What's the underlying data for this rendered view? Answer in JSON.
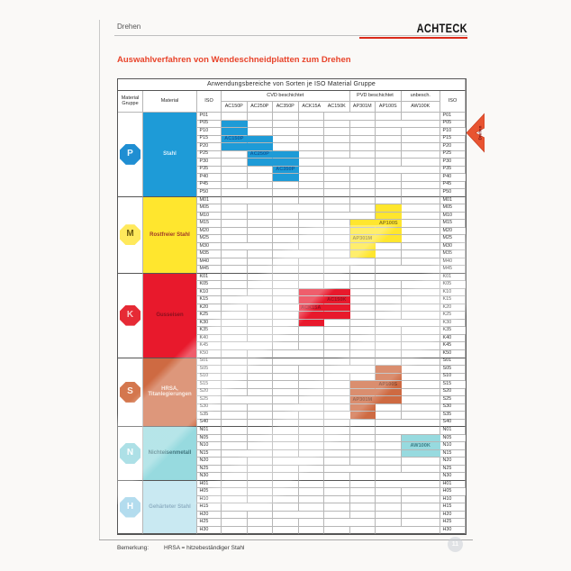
{
  "page": {
    "tab_label": "Drehen",
    "brand": "ACHTECK",
    "heading": "Auswahlverfahren von Wendeschneidplatten zum Drehen",
    "side_tab_label": "Drehen",
    "page_badge": "11",
    "accent_red": "#da2a1a"
  },
  "footer": {
    "label": "Bemerkung:",
    "text": "HRSA = hitzebeständiger Stahl"
  },
  "chart": {
    "title": "Anwendungsbereiche von Sorten je ISO Material Gruppe",
    "headers": {
      "material_group": "Material Gruppe",
      "material": "Material",
      "iso_left": "ISO",
      "iso_right": "ISO",
      "groups": [
        {
          "label": "CVD beschichtet",
          "cols": [
            "AC150P",
            "AC250P",
            "AC350P",
            "ACK15A",
            "AC150K"
          ]
        },
        {
          "label": "PVD beschichtet",
          "cols": [
            "AP301M",
            "AP100S"
          ]
        },
        {
          "label": "unbesch.",
          "cols": [
            "AW100K"
          ]
        }
      ]
    },
    "sections": [
      {
        "group": "P",
        "material": [
          "Stahl"
        ],
        "color": "#1e9bd7",
        "oct_color": "#1f8ed2",
        "letter_color": "#eaf6fd",
        "material_text_color": "#d8eefb",
        "label_color": "#0c5296",
        "iso": [
          "P01",
          "P05",
          "P10",
          "P15",
          "P20",
          "P25",
          "P30",
          "P35",
          "P40",
          "P45",
          "P50"
        ],
        "blocks": [
          {
            "grade": "AC150P",
            "from": "P05",
            "to": "P20",
            "label_at": "P15"
          },
          {
            "grade": "AC250P",
            "from": "P15",
            "to": "P30",
            "label_at": "P25"
          },
          {
            "grade": "AC350P",
            "from": "P25",
            "to": "P40",
            "label_at": "P35"
          }
        ]
      },
      {
        "group": "M",
        "material": [
          "Rostfreier Stahl"
        ],
        "color": "#ffe62e",
        "oct_color": "#ffe95c",
        "letter_color": "#6b5a10",
        "material_text_color": "#a03a28",
        "label_color": "#7c6a1e",
        "iso": [
          "M01",
          "M05",
          "M10",
          "M15",
          "M20",
          "M25",
          "M30",
          "M35",
          "M40",
          "M45"
        ],
        "blocks": [
          {
            "grade": "AP301M",
            "from": "M15",
            "to": "M35",
            "label_at": "M25"
          },
          {
            "grade": "AP100S",
            "from": "M05",
            "to": "M25",
            "label_at": "M15"
          }
        ]
      },
      {
        "group": "K",
        "material": [
          "Gusseisen"
        ],
        "color": "#e8192c",
        "oct_color": "#e62a35",
        "letter_color": "#f6c9c9",
        "material_text_color": "#8a0f1d",
        "label_color": "#8a0f1d",
        "iso": [
          "K01",
          "K05",
          "K10",
          "K15",
          "K20",
          "K25",
          "K30",
          "K35",
          "K40",
          "K45",
          "K50"
        ],
        "blocks": [
          {
            "grade": "ACK15A",
            "from": "K10",
            "to": "K30",
            "label_at": "K20"
          },
          {
            "grade": "AC150K",
            "from": "K10",
            "to": "K25",
            "label_at": "K15"
          }
        ]
      },
      {
        "group": "S",
        "material": [
          "HRSA,",
          "Titanlegierungen"
        ],
        "color": "#ce6a42",
        "oct_color": "#d4774e",
        "letter_color": "#fceee6",
        "material_text_color": "#f7e4d8",
        "label_color": "#73331a",
        "iso": [
          "S01",
          "S05",
          "S10",
          "S15",
          "S20",
          "S25",
          "S30",
          "S35",
          "S40"
        ],
        "blocks": [
          {
            "grade": "AP301M",
            "from": "S15",
            "to": "S35",
            "label_at": "S25"
          },
          {
            "grade": "AP100S",
            "from": "S05",
            "to": "S25",
            "label_at": "S15"
          }
        ]
      },
      {
        "group": "N",
        "material": [
          "Nichteisenmetall"
        ],
        "color": "#97dadf",
        "oct_color": "#8ad3dc",
        "letter_color": "#ffffff",
        "material_text_color": "#41757e",
        "label_color": "#2b6d77",
        "iso": [
          "N01",
          "N05",
          "N10",
          "N15",
          "N20",
          "N25",
          "N30"
        ],
        "blocks": [
          {
            "grade": "AW100K",
            "from": "N05",
            "to": "N15",
            "label_at": "N10"
          }
        ]
      },
      {
        "group": "H",
        "material": [
          "Gehärteter Stahl"
        ],
        "color": "#c9e9f2",
        "oct_color": "#b3dcee",
        "letter_color": "#ffffff",
        "material_text_color": "#8fb0c4",
        "label_color": "#667788",
        "iso": [
          "H01",
          "H05",
          "H10",
          "H15",
          "H20",
          "H25",
          "H30"
        ],
        "blocks": []
      }
    ]
  }
}
